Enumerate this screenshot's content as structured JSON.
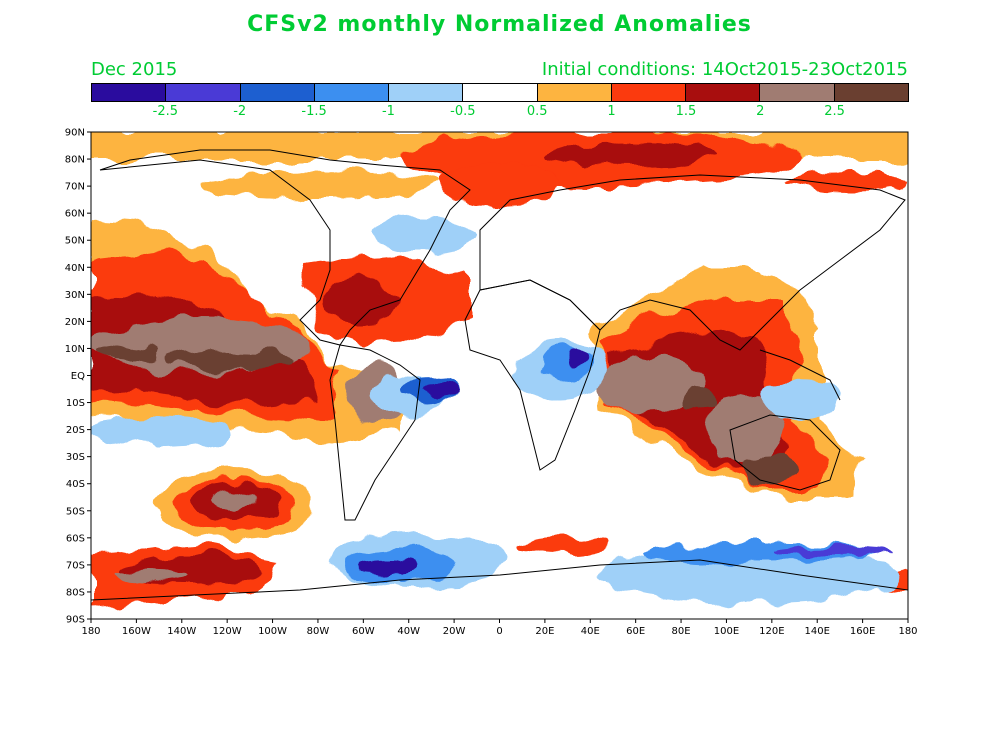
{
  "title": "CFSv2 monthly Normalized Anomalies",
  "valid_month": "Dec 2015",
  "initial_conditions": "Initial conditions: 14Oct2015-23Oct2015",
  "colorbar": {
    "colors": [
      "#2a0c9e",
      "#4a3ad6",
      "#1d5fd0",
      "#3c8ff0",
      "#9fd0f8",
      "#ffffff",
      "#fdb440",
      "#fb3a0e",
      "#a80e0e",
      "#a07c72",
      "#6a3f30"
    ],
    "labels": [
      "-2.5",
      "-2",
      "-1.5",
      "-1",
      "-0.5",
      "0.5",
      "1",
      "1.5",
      "2",
      "2.5"
    ]
  },
  "axes": {
    "lat_labels": [
      "90N",
      "80N",
      "70N",
      "60N",
      "50N",
      "40N",
      "30N",
      "20N",
      "10N",
      "EQ",
      "10S",
      "20S",
      "30S",
      "40S",
      "50S",
      "60S",
      "70S",
      "80S",
      "90S"
    ],
    "lon_labels": [
      "180",
      "160W",
      "140W",
      "120W",
      "100W",
      "80W",
      "60W",
      "40W",
      "20W",
      "0",
      "20E",
      "40E",
      "60E",
      "80E",
      "100E",
      "120E",
      "140E",
      "160E",
      "180"
    ]
  }
}
